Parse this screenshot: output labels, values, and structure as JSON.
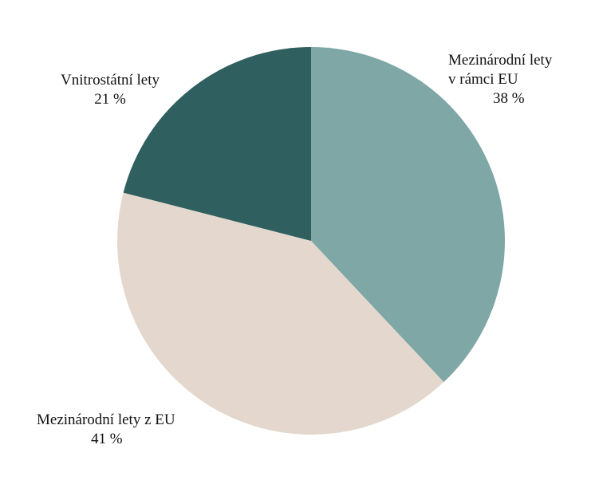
{
  "chart_data": {
    "type": "pie",
    "title": "",
    "slices": [
      {
        "name": "Mezinárodní lety v rámci EU",
        "label_lines": [
          "Mezinárodní lety",
          "v rámci EU"
        ],
        "value": 38,
        "value_label": "38 %",
        "color": "#7ea7a5"
      },
      {
        "name": "Mezinárodní lety z EU",
        "label_lines": [
          "Mezinárodní lety z EU"
        ],
        "value": 41,
        "value_label": "41 %",
        "color": "#e4d8ce"
      },
      {
        "name": "Vnitrostátní lety",
        "label_lines": [
          "Vnitrostátní lety"
        ],
        "value": 21,
        "value_label": "21 %",
        "color": "#2f5f5f"
      }
    ],
    "start_angle": "12 o'clock",
    "direction": "clockwise",
    "legend": "none",
    "labels": "outside"
  }
}
